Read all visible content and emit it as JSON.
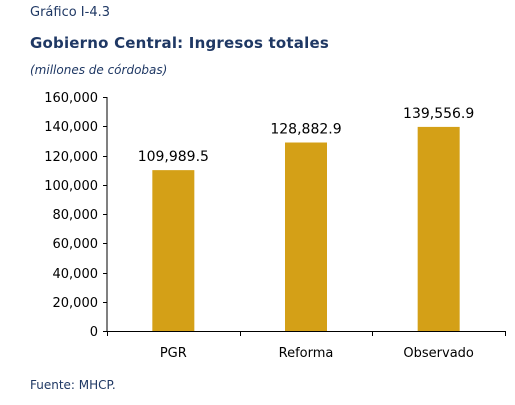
{
  "header": {
    "kicker": "Gráfico I-4.3",
    "title": "Gobierno Central: Ingresos totales",
    "subtitle": "(millones de córdobas)"
  },
  "footer": {
    "source": "Fuente: MHCP."
  },
  "colors": {
    "bar": "#d4a017",
    "heading": "#1f3864",
    "axis": "#000000"
  },
  "chart_data": {
    "type": "bar",
    "categories": [
      "PGR",
      "Reforma",
      "Observado"
    ],
    "values": [
      109989.5,
      128882.9,
      139556.9
    ],
    "value_labels": [
      "109,989.5",
      "128,882.9",
      "139,556.9"
    ],
    "ylim": [
      0,
      160000
    ],
    "yticks": [
      0,
      20000,
      40000,
      60000,
      80000,
      100000,
      120000,
      140000,
      160000
    ],
    "ytick_labels": [
      "0",
      "20,000",
      "40,000",
      "60,000",
      "80,000",
      "100,000",
      "120,000",
      "140,000",
      "160,000"
    ],
    "title": "Gobierno Central: Ingresos totales",
    "xlabel": "",
    "ylabel": "",
    "grid": false,
    "legend": "none"
  }
}
